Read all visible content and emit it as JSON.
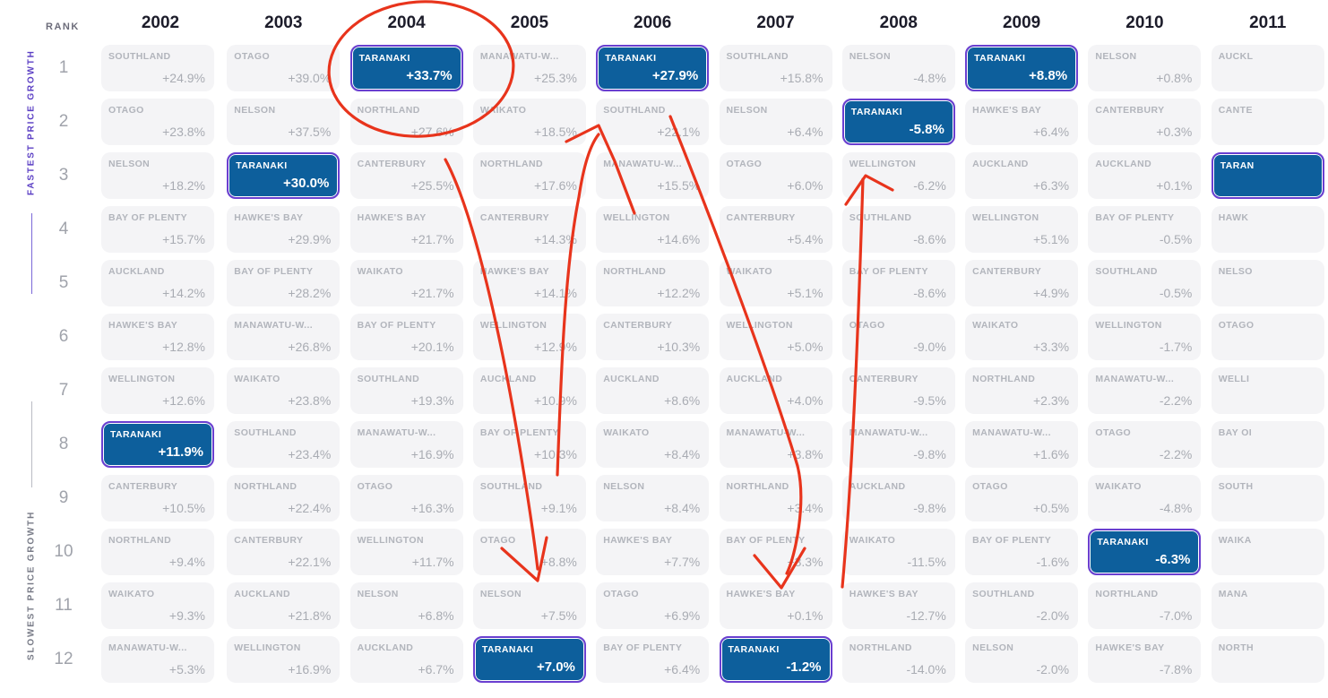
{
  "colors": {
    "highlight_fill": "#0d5f9c",
    "highlight_border": "#6a3fd0",
    "cell_fill": "#f4f4f6",
    "annotation": "#e8341c"
  },
  "labels": {
    "rank": "RANK",
    "fastest": "FASTEST PRICE GROWTH",
    "slowest": "SLOWEST PRICE GROWTH"
  },
  "chart_data": {
    "type": "table",
    "title": "",
    "highlighted_region": "TARANAKI",
    "years": [
      "2002",
      "2003",
      "2004",
      "2005",
      "2006",
      "2007",
      "2008",
      "2009",
      "2010",
      "2011"
    ],
    "ranks": [
      "1",
      "2",
      "3",
      "4",
      "5",
      "6",
      "7",
      "8",
      "9",
      "10",
      "11",
      "12"
    ],
    "columns": [
      {
        "year": "2002",
        "cells": [
          {
            "region": "SOUTHLAND",
            "change": "+24.9%"
          },
          {
            "region": "OTAGO",
            "change": "+23.8%"
          },
          {
            "region": "NELSON",
            "change": "+18.2%"
          },
          {
            "region": "BAY OF PLENTY",
            "change": "+15.7%"
          },
          {
            "region": "AUCKLAND",
            "change": "+14.2%"
          },
          {
            "region": "HAWKE'S BAY",
            "change": "+12.8%"
          },
          {
            "region": "WELLINGTON",
            "change": "+12.6%"
          },
          {
            "region": "TARANAKI",
            "change": "+11.9%"
          },
          {
            "region": "CANTERBURY",
            "change": "+10.5%"
          },
          {
            "region": "NORTHLAND",
            "change": "+9.4%"
          },
          {
            "region": "WAIKATO",
            "change": "+9.3%"
          },
          {
            "region": "MANAWATU-W...",
            "change": "+5.3%"
          }
        ]
      },
      {
        "year": "2003",
        "cells": [
          {
            "region": "OTAGO",
            "change": "+39.0%"
          },
          {
            "region": "NELSON",
            "change": "+37.5%"
          },
          {
            "region": "TARANAKI",
            "change": "+30.0%"
          },
          {
            "region": "HAWKE'S BAY",
            "change": "+29.9%"
          },
          {
            "region": "BAY OF PLENTY",
            "change": "+28.2%"
          },
          {
            "region": "MANAWATU-W...",
            "change": "+26.8%"
          },
          {
            "region": "WAIKATO",
            "change": "+23.8%"
          },
          {
            "region": "SOUTHLAND",
            "change": "+23.4%"
          },
          {
            "region": "NORTHLAND",
            "change": "+22.4%"
          },
          {
            "region": "CANTERBURY",
            "change": "+22.1%"
          },
          {
            "region": "AUCKLAND",
            "change": "+21.8%"
          },
          {
            "region": "WELLINGTON",
            "change": "+16.9%"
          }
        ]
      },
      {
        "year": "2004",
        "cells": [
          {
            "region": "TARANAKI",
            "change": "+33.7%"
          },
          {
            "region": "NORTHLAND",
            "change": "+27.6%"
          },
          {
            "region": "CANTERBURY",
            "change": "+25.5%"
          },
          {
            "region": "HAWKE'S BAY",
            "change": "+21.7%"
          },
          {
            "region": "WAIKATO",
            "change": "+21.7%"
          },
          {
            "region": "BAY OF PLENTY",
            "change": "+20.1%"
          },
          {
            "region": "SOUTHLAND",
            "change": "+19.3%"
          },
          {
            "region": "MANAWATU-W...",
            "change": "+16.9%"
          },
          {
            "region": "OTAGO",
            "change": "+16.3%"
          },
          {
            "region": "WELLINGTON",
            "change": "+11.7%"
          },
          {
            "region": "NELSON",
            "change": "+6.8%"
          },
          {
            "region": "AUCKLAND",
            "change": "+6.7%"
          }
        ]
      },
      {
        "year": "2005",
        "cells": [
          {
            "region": "MANAWATU-W...",
            "change": "+25.3%"
          },
          {
            "region": "WAIKATO",
            "change": "+18.5%"
          },
          {
            "region": "NORTHLAND",
            "change": "+17.6%"
          },
          {
            "region": "CANTERBURY",
            "change": "+14.3%"
          },
          {
            "region": "HAWKE'S BAY",
            "change": "+14.1%"
          },
          {
            "region": "WELLINGTON",
            "change": "+12.9%"
          },
          {
            "region": "AUCKLAND",
            "change": "+10.9%"
          },
          {
            "region": "BAY OF PLENTY",
            "change": "+10.3%"
          },
          {
            "region": "SOUTHLAND",
            "change": "+9.1%"
          },
          {
            "region": "OTAGO",
            "change": "+8.8%"
          },
          {
            "region": "NELSON",
            "change": "+7.5%"
          },
          {
            "region": "TARANAKI",
            "change": "+7.0%"
          }
        ]
      },
      {
        "year": "2006",
        "cells": [
          {
            "region": "TARANAKI",
            "change": "+27.9%"
          },
          {
            "region": "SOUTHLAND",
            "change": "+22.1%"
          },
          {
            "region": "MANAWATU-W...",
            "change": "+15.5%"
          },
          {
            "region": "WELLINGTON",
            "change": "+14.6%"
          },
          {
            "region": "NORTHLAND",
            "change": "+12.2%"
          },
          {
            "region": "CANTERBURY",
            "change": "+10.3%"
          },
          {
            "region": "AUCKLAND",
            "change": "+8.6%"
          },
          {
            "region": "WAIKATO",
            "change": "+8.4%"
          },
          {
            "region": "NELSON",
            "change": "+8.4%"
          },
          {
            "region": "HAWKE'S BAY",
            "change": "+7.7%"
          },
          {
            "region": "OTAGO",
            "change": "+6.9%"
          },
          {
            "region": "BAY OF PLENTY",
            "change": "+6.4%"
          }
        ]
      },
      {
        "year": "2007",
        "cells": [
          {
            "region": "SOUTHLAND",
            "change": "+15.8%"
          },
          {
            "region": "NELSON",
            "change": "+6.4%"
          },
          {
            "region": "OTAGO",
            "change": "+6.0%"
          },
          {
            "region": "CANTERBURY",
            "change": "+5.4%"
          },
          {
            "region": "WAIKATO",
            "change": "+5.1%"
          },
          {
            "region": "WELLINGTON",
            "change": "+5.0%"
          },
          {
            "region": "AUCKLAND",
            "change": "+4.0%"
          },
          {
            "region": "MANAWATU-W...",
            "change": "+3.8%"
          },
          {
            "region": "NORTHLAND",
            "change": "+3.4%"
          },
          {
            "region": "BAY OF PLENTY",
            "change": "+3.3%"
          },
          {
            "region": "HAWKE'S BAY",
            "change": "+0.1%"
          },
          {
            "region": "TARANAKI",
            "change": "-1.2%"
          }
        ]
      },
      {
        "year": "2008",
        "cells": [
          {
            "region": "NELSON",
            "change": "-4.8%"
          },
          {
            "region": "TARANAKI",
            "change": "-5.8%"
          },
          {
            "region": "WELLINGTON",
            "change": "-6.2%"
          },
          {
            "region": "SOUTHLAND",
            "change": "-8.6%"
          },
          {
            "region": "BAY OF PLENTY",
            "change": "-8.6%"
          },
          {
            "region": "OTAGO",
            "change": "-9.0%"
          },
          {
            "region": "CANTERBURY",
            "change": "-9.5%"
          },
          {
            "region": "MANAWATU-W...",
            "change": "-9.8%"
          },
          {
            "region": "AUCKLAND",
            "change": "-9.8%"
          },
          {
            "region": "WAIKATO",
            "change": "-11.5%"
          },
          {
            "region": "HAWKE'S BAY",
            "change": "-12.7%"
          },
          {
            "region": "NORTHLAND",
            "change": "-14.0%"
          }
        ]
      },
      {
        "year": "2009",
        "cells": [
          {
            "region": "TARANAKI",
            "change": "+8.8%"
          },
          {
            "region": "HAWKE'S BAY",
            "change": "+6.4%"
          },
          {
            "region": "AUCKLAND",
            "change": "+6.3%"
          },
          {
            "region": "WELLINGTON",
            "change": "+5.1%"
          },
          {
            "region": "CANTERBURY",
            "change": "+4.9%"
          },
          {
            "region": "WAIKATO",
            "change": "+3.3%"
          },
          {
            "region": "NORTHLAND",
            "change": "+2.3%"
          },
          {
            "region": "MANAWATU-W...",
            "change": "+1.6%"
          },
          {
            "region": "OTAGO",
            "change": "+0.5%"
          },
          {
            "region": "BAY OF PLENTY",
            "change": "-1.6%"
          },
          {
            "region": "SOUTHLAND",
            "change": "-2.0%"
          },
          {
            "region": "NELSON",
            "change": "-2.0%"
          }
        ]
      },
      {
        "year": "2010",
        "cells": [
          {
            "region": "NELSON",
            "change": "+0.8%"
          },
          {
            "region": "CANTERBURY",
            "change": "+0.3%"
          },
          {
            "region": "AUCKLAND",
            "change": "+0.1%"
          },
          {
            "region": "BAY OF PLENTY",
            "change": "-0.5%"
          },
          {
            "region": "SOUTHLAND",
            "change": "-0.5%"
          },
          {
            "region": "WELLINGTON",
            "change": "-1.7%"
          },
          {
            "region": "MANAWATU-W...",
            "change": "-2.2%"
          },
          {
            "region": "OTAGO",
            "change": "-2.2%"
          },
          {
            "region": "WAIKATO",
            "change": "-4.8%"
          },
          {
            "region": "TARANAKI",
            "change": "-6.3%"
          },
          {
            "region": "NORTHLAND",
            "change": "-7.0%"
          },
          {
            "region": "HAWKE'S BAY",
            "change": "-7.8%"
          }
        ]
      },
      {
        "year": "2011",
        "cells": [
          {
            "region": "AUCKL",
            "change": ""
          },
          {
            "region": "CANTE",
            "change": ""
          },
          {
            "region": "TARAN",
            "change": ""
          },
          {
            "region": "HAWK",
            "change": ""
          },
          {
            "region": "NELSO",
            "change": ""
          },
          {
            "region": "OTAGO",
            "change": ""
          },
          {
            "region": "WELLI",
            "change": ""
          },
          {
            "region": "BAY OI",
            "change": ""
          },
          {
            "region": "SOUTH",
            "change": ""
          },
          {
            "region": "WAIKA",
            "change": ""
          },
          {
            "region": "MANA",
            "change": ""
          },
          {
            "region": "NORTH",
            "change": ""
          }
        ]
      }
    ],
    "xlabel": "",
    "ylabel": "RANK"
  }
}
